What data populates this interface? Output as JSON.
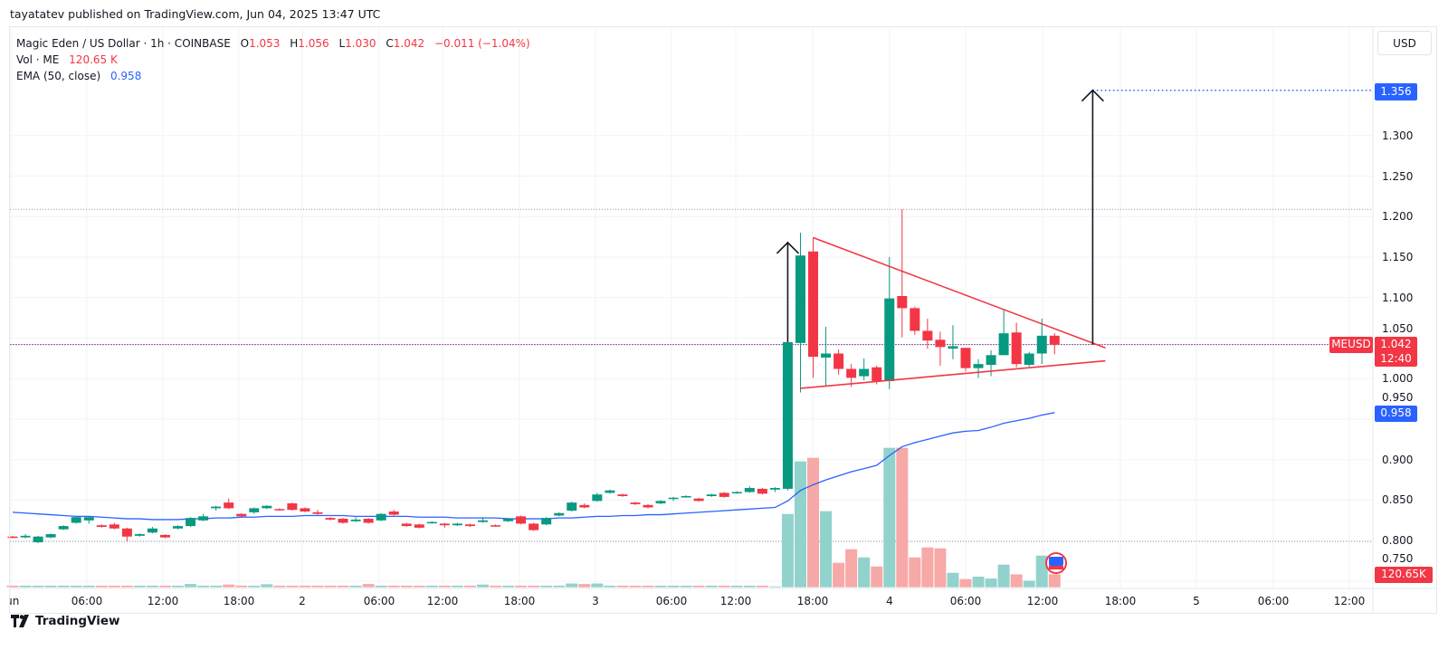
{
  "publish_info": "tayatatev published on TradingView.com, Jun 04, 2025 13:47 UTC",
  "legend": {
    "symbol": "Magic Eden / US Dollar · 1h · COINBASE",
    "o_label": "O",
    "o": "1.053",
    "h_label": "H",
    "h": "1.056",
    "l_label": "L",
    "l": "1.030",
    "c_label": "C",
    "c": "1.042",
    "change": "−0.011 (−1.04%)",
    "vol_label": "Vol · ME",
    "vol": "120.65 K",
    "ema_label": "EMA (50, close)",
    "ema": "0.958"
  },
  "currency": "USD",
  "badges": {
    "target": "1.356",
    "symbol": "MEUSD",
    "price": "1.042",
    "countdown": "12:40",
    "ema": "0.958",
    "volume": "120.65K"
  },
  "branding": "TradingView",
  "colors": {
    "up": "#089981",
    "down": "#F23645",
    "up_volume": "#92D2CC",
    "down_volume": "#F7A9A7",
    "ema": "#2962FF",
    "drawing_triangle": "#F23645",
    "drawing_arrow": "#131722",
    "target_line": "#2962FF"
  },
  "chart_data": {
    "type": "candlestick",
    "interval": "1h",
    "ylim": [
      0.741,
      1.435
    ],
    "y_ticks": [
      "1.300",
      "1.250",
      "1.200",
      "1.150",
      "1.100",
      "1.050",
      "1.000",
      "0.950",
      "0.900",
      "0.850",
      "0.800",
      "0.750"
    ],
    "x_ticks": [
      "Jun",
      "06:00",
      "12:00",
      "18:00",
      "2",
      "06:00",
      "12:00",
      "18:00",
      "3",
      "06:00",
      "12:00",
      "18:00",
      "4",
      "06:00",
      "12:00",
      "18:00",
      "5",
      "06:00",
      "12:00"
    ],
    "grid": true,
    "ohlc": [
      [
        0.805,
        0.806,
        0.803,
        0.804
      ],
      [
        0.804,
        0.808,
        0.803,
        0.806
      ],
      [
        0.798,
        0.806,
        0.797,
        0.805
      ],
      [
        0.804,
        0.809,
        0.803,
        0.808
      ],
      [
        0.814,
        0.819,
        0.813,
        0.818
      ],
      [
        0.822,
        0.83,
        0.821,
        0.829
      ],
      [
        0.825,
        0.83,
        0.821,
        0.829
      ],
      [
        0.819,
        0.82,
        0.816,
        0.817
      ],
      [
        0.82,
        0.822,
        0.814,
        0.815
      ],
      [
        0.815,
        0.816,
        0.799,
        0.805
      ],
      [
        0.806,
        0.809,
        0.805,
        0.808
      ],
      [
        0.81,
        0.817,
        0.809,
        0.815
      ],
      [
        0.807,
        0.808,
        0.803,
        0.804
      ],
      [
        0.815,
        0.819,
        0.814,
        0.818
      ],
      [
        0.818,
        0.829,
        0.817,
        0.828
      ],
      [
        0.825,
        0.833,
        0.824,
        0.83
      ],
      [
        0.84,
        0.843,
        0.837,
        0.842
      ],
      [
        0.847,
        0.852,
        0.839,
        0.84
      ],
      [
        0.833,
        0.834,
        0.829,
        0.83
      ],
      [
        0.835,
        0.841,
        0.833,
        0.84
      ],
      [
        0.84,
        0.844,
        0.839,
        0.843
      ],
      [
        0.839,
        0.84,
        0.837,
        0.838
      ],
      [
        0.846,
        0.847,
        0.837,
        0.838
      ],
      [
        0.84,
        0.841,
        0.835,
        0.836
      ],
      [
        0.835,
        0.838,
        0.832,
        0.833
      ],
      [
        0.828,
        0.829,
        0.825,
        0.826
      ],
      [
        0.827,
        0.828,
        0.821,
        0.822
      ],
      [
        0.824,
        0.829,
        0.823,
        0.826
      ],
      [
        0.827,
        0.828,
        0.821,
        0.822
      ],
      [
        0.825,
        0.834,
        0.824,
        0.833
      ],
      [
        0.836,
        0.838,
        0.831,
        0.832
      ],
      [
        0.821,
        0.822,
        0.817,
        0.818
      ],
      [
        0.82,
        0.821,
        0.815,
        0.816
      ],
      [
        0.822,
        0.824,
        0.821,
        0.823
      ],
      [
        0.821,
        0.822,
        0.816,
        0.819
      ],
      [
        0.819,
        0.822,
        0.818,
        0.821
      ],
      [
        0.82,
        0.821,
        0.817,
        0.818
      ],
      [
        0.823,
        0.829,
        0.822,
        0.825
      ],
      [
        0.819,
        0.82,
        0.817,
        0.818
      ],
      [
        0.824,
        0.828,
        0.823,
        0.827
      ],
      [
        0.83,
        0.831,
        0.82,
        0.821
      ],
      [
        0.821,
        0.822,
        0.812,
        0.813
      ],
      [
        0.82,
        0.829,
        0.819,
        0.828
      ],
      [
        0.831,
        0.835,
        0.83,
        0.834
      ],
      [
        0.837,
        0.848,
        0.836,
        0.847
      ],
      [
        0.844,
        0.846,
        0.84,
        0.841
      ],
      [
        0.849,
        0.859,
        0.848,
        0.857
      ],
      [
        0.859,
        0.863,
        0.858,
        0.862
      ],
      [
        0.857,
        0.858,
        0.854,
        0.855
      ],
      [
        0.847,
        0.848,
        0.844,
        0.845
      ],
      [
        0.844,
        0.845,
        0.84,
        0.841
      ],
      [
        0.846,
        0.85,
        0.845,
        0.849
      ],
      [
        0.852,
        0.854,
        0.849,
        0.853
      ],
      [
        0.854,
        0.856,
        0.853,
        0.855
      ],
      [
        0.852,
        0.853,
        0.848,
        0.849
      ],
      [
        0.855,
        0.858,
        0.854,
        0.857
      ],
      [
        0.859,
        0.86,
        0.853,
        0.854
      ],
      [
        0.859,
        0.861,
        0.858,
        0.86
      ],
      [
        0.86,
        0.867,
        0.859,
        0.865
      ],
      [
        0.864,
        0.865,
        0.857,
        0.858
      ],
      [
        0.863,
        0.866,
        0.86,
        0.865
      ],
      [
        0.864,
        1.045,
        0.862,
        1.045
      ],
      [
        1.044,
        1.18,
        0.983,
        1.152
      ],
      [
        1.157,
        1.174,
        1.001,
        1.027
      ],
      [
        1.026,
        1.064,
        0.991,
        1.031
      ],
      [
        1.031,
        1.036,
        1.005,
        1.012
      ],
      [
        1.012,
        1.018,
        0.99,
        1.001
      ],
      [
        1.003,
        1.025,
        0.998,
        1.012
      ],
      [
        1.014,
        1.016,
        0.993,
        0.997
      ],
      [
        0.997,
        1.15,
        0.987,
        1.099
      ],
      [
        1.102,
        1.209,
        1.051,
        1.087
      ],
      [
        1.087,
        1.089,
        1.054,
        1.059
      ],
      [
        1.059,
        1.074,
        1.037,
        1.047
      ],
      [
        1.048,
        1.058,
        1.016,
        1.039
      ],
      [
        1.037,
        1.066,
        1.024,
        1.04
      ],
      [
        1.038,
        1.038,
        1.009,
        1.013
      ],
      [
        1.013,
        1.024,
        1.001,
        1.018
      ],
      [
        1.017,
        1.035,
        1.003,
        1.029
      ],
      [
        1.029,
        1.085,
        1.029,
        1.056
      ],
      [
        1.057,
        1.069,
        1.014,
        1.018
      ],
      [
        1.017,
        1.033,
        1.015,
        1.031
      ],
      [
        1.031,
        1.074,
        1.018,
        1.053
      ],
      [
        1.053,
        1.056,
        1.03,
        1.042
      ]
    ],
    "volume_k": [
      15,
      15,
      15,
      15,
      15,
      15,
      15,
      15,
      15,
      15,
      15,
      15,
      15,
      15,
      30,
      15,
      15,
      25,
      15,
      15,
      28,
      15,
      15,
      15,
      15,
      15,
      15,
      15,
      30,
      15,
      15,
      15,
      15,
      15,
      15,
      15,
      15,
      25,
      15,
      15,
      15,
      15,
      15,
      15,
      35,
      30,
      35,
      15,
      15,
      15,
      15,
      15,
      15,
      15,
      15,
      15,
      15,
      15,
      15,
      15,
      8,
      680,
      1168,
      1201,
      706,
      227,
      353,
      277,
      193,
      1294,
      1294,
      277,
      370,
      361,
      134,
      76,
      98,
      81,
      210,
      120,
      61,
      294,
      120.65
    ],
    "ema_50": [
      0.835,
      0.834,
      0.833,
      0.832,
      0.831,
      0.83,
      0.83,
      0.829,
      0.828,
      0.827,
      0.827,
      0.826,
      0.826,
      0.826,
      0.827,
      0.827,
      0.828,
      0.828,
      0.829,
      0.829,
      0.83,
      0.83,
      0.83,
      0.831,
      0.831,
      0.831,
      0.831,
      0.83,
      0.83,
      0.83,
      0.83,
      0.83,
      0.829,
      0.829,
      0.829,
      0.828,
      0.828,
      0.828,
      0.828,
      0.827,
      0.827,
      0.827,
      0.827,
      0.828,
      0.828,
      0.829,
      0.83,
      0.83,
      0.831,
      0.831,
      0.832,
      0.832,
      0.833,
      0.834,
      0.835,
      0.836,
      0.837,
      0.838,
      0.839,
      0.84,
      0.841,
      0.849,
      0.862,
      0.869,
      0.875,
      0.88,
      0.885,
      0.889,
      0.893,
      0.905,
      0.916,
      0.921,
      0.925,
      0.929,
      0.933,
      0.935,
      0.936,
      0.94,
      0.945,
      0.948,
      0.951,
      0.955,
      0.958
    ],
    "current_price": 1.042,
    "horizontal_lines": [
      1.209,
      0.799
    ],
    "drawings": {
      "triangle_upper": [
        [
          "Jun 3 18:00",
          1.174
        ],
        [
          "Jun 4 17:00",
          1.038
        ]
      ],
      "triangle_lower": [
        [
          "Jun 3 17:00",
          0.988
        ],
        [
          "Jun 4 17:00",
          1.022
        ]
      ],
      "arrow_flagpole": [
        [
          "Jun 3 16:00",
          1.045
        ],
        [
          "Jun 3 16:00",
          1.168
        ]
      ],
      "arrow_target": [
        [
          "Jun 4 16:00",
          1.042
        ],
        [
          "Jun 4 16:00",
          1.356
        ]
      ],
      "target_level": 1.356
    }
  }
}
